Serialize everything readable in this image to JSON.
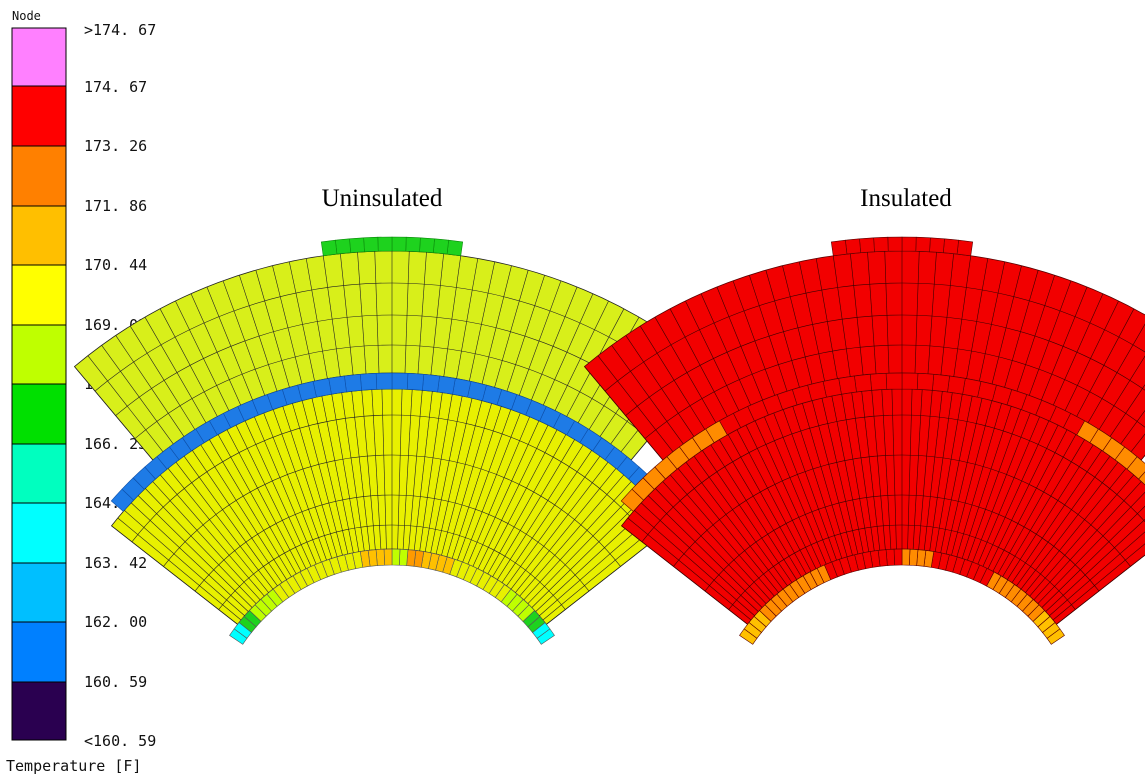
{
  "legend": {
    "title": "Node",
    "footer": "Temperature [F]",
    "bands": [
      {
        "label": ">174. 67",
        "color": "#ff80ff"
      },
      {
        "label": "174. 67",
        "color": "#ff0000"
      },
      {
        "label": "173. 26",
        "color": "#ff8000"
      },
      {
        "label": "171. 86",
        "color": "#ffbf00"
      },
      {
        "label": "170. 44",
        "color": "#ffff00"
      },
      {
        "label": "169. 03",
        "color": "#bfff00"
      },
      {
        "label": "167. 63",
        "color": "#00e000"
      },
      {
        "label": "166. 23",
        "color": "#00ffbf"
      },
      {
        "label": "164. 82",
        "color": "#00ffff"
      },
      {
        "label": "163. 42",
        "color": "#00bfff"
      },
      {
        "label": "162. 00",
        "color": "#0080ff"
      },
      {
        "label": "160. 59",
        "color": "#2a0050"
      }
    ],
    "bottom_label": "<160. 59"
  },
  "panels": {
    "uninsulated": {
      "title": "Uninsulated"
    },
    "insulated": {
      "title": "Insulated"
    }
  },
  "colors": {
    "yellow": "#e8f000",
    "yellow_green": "#d8ef1a",
    "blue_band": "#1e7be6",
    "green_cap": "#1ed21e",
    "red": "#f20000",
    "orange": "#ff8c00",
    "amber": "#ffc000",
    "grid": "#222222"
  }
}
